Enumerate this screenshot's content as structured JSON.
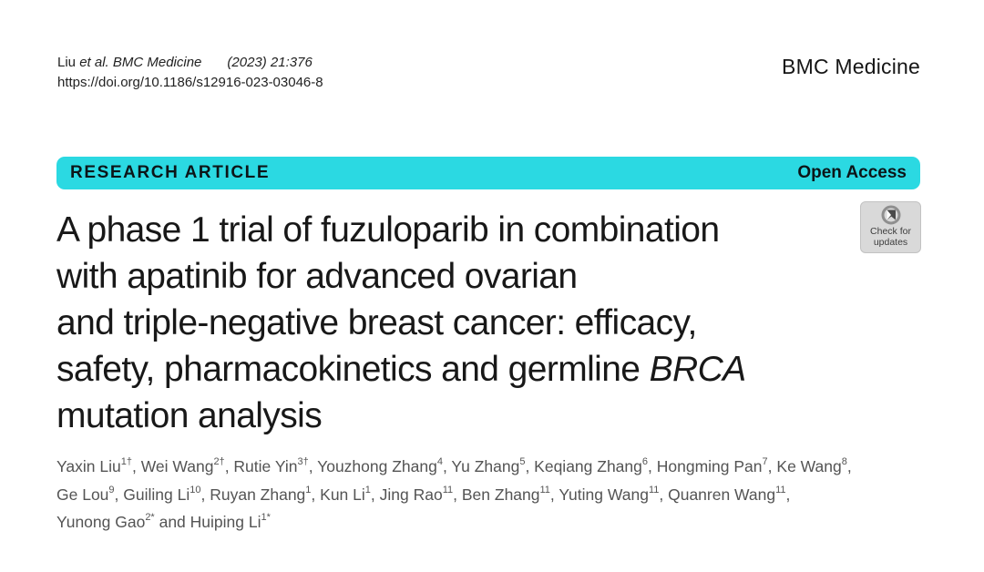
{
  "header": {
    "citation_prefix": "Liu ",
    "citation_italic": "et al. BMC Medicine",
    "citation_issue": "(2023) 21:376",
    "doi": "https://doi.org/10.1186/s12916-023-03046-8",
    "journal_name": "BMC Medicine"
  },
  "banner": {
    "article_type": "RESEARCH ARTICLE",
    "access_label": "Open Access",
    "background_color": "#2bd9e2"
  },
  "check_badge": {
    "line1": "Check for",
    "line2": "updates"
  },
  "title": {
    "full_text": "A phase 1 trial of fuzuloparib in combination with apatinib for advanced ovarian and triple-negative breast cancer: efficacy, safety, pharmacokinetics and germline BRCA mutation analysis",
    "lines": [
      [
        {
          "text": "A phase 1 trial of fuzuloparib in combination"
        }
      ],
      [
        {
          "text": "with apatinib for advanced ovarian"
        }
      ],
      [
        {
          "text": "and triple-negative breast cancer: efficacy,"
        }
      ],
      [
        {
          "text": "safety, pharmacokinetics and germline "
        },
        {
          "text": "BRCA",
          "italic": true
        }
      ],
      [
        {
          "text": "mutation analysis"
        }
      ]
    ]
  },
  "authors": {
    "lines": [
      [
        {
          "name": "Yaxin Liu",
          "sup": "1†",
          "sep": ", "
        },
        {
          "name": "Wei Wang",
          "sup": "2†",
          "sep": ", "
        },
        {
          "name": "Rutie Yin",
          "sup": "3†",
          "sep": ", "
        },
        {
          "name": "Youzhong Zhang",
          "sup": "4",
          "sep": ", "
        },
        {
          "name": "Yu Zhang",
          "sup": "5",
          "sep": ", "
        },
        {
          "name": "Keqiang Zhang",
          "sup": "6",
          "sep": ", "
        },
        {
          "name": "Hongming Pan",
          "sup": "7",
          "sep": ", "
        },
        {
          "name": "Ke Wang",
          "sup": "8",
          "sep": ","
        }
      ],
      [
        {
          "name": "Ge Lou",
          "sup": "9",
          "sep": ", "
        },
        {
          "name": "Guiling Li",
          "sup": "10",
          "sep": ", "
        },
        {
          "name": "Ruyan Zhang",
          "sup": "1",
          "sep": ", "
        },
        {
          "name": "Kun Li",
          "sup": "1",
          "sep": ", "
        },
        {
          "name": "Jing Rao",
          "sup": "11",
          "sep": ", "
        },
        {
          "name": "Ben Zhang",
          "sup": "11",
          "sep": ", "
        },
        {
          "name": "Yuting Wang",
          "sup": "11",
          "sep": ", "
        },
        {
          "name": "Quanren Wang",
          "sup": "11",
          "sep": ","
        }
      ],
      [
        {
          "name": "Yunong Gao",
          "sup": "2*",
          "sep": " and "
        },
        {
          "name": "Huiping Li",
          "sup": "1*",
          "sep": ""
        }
      ]
    ]
  }
}
